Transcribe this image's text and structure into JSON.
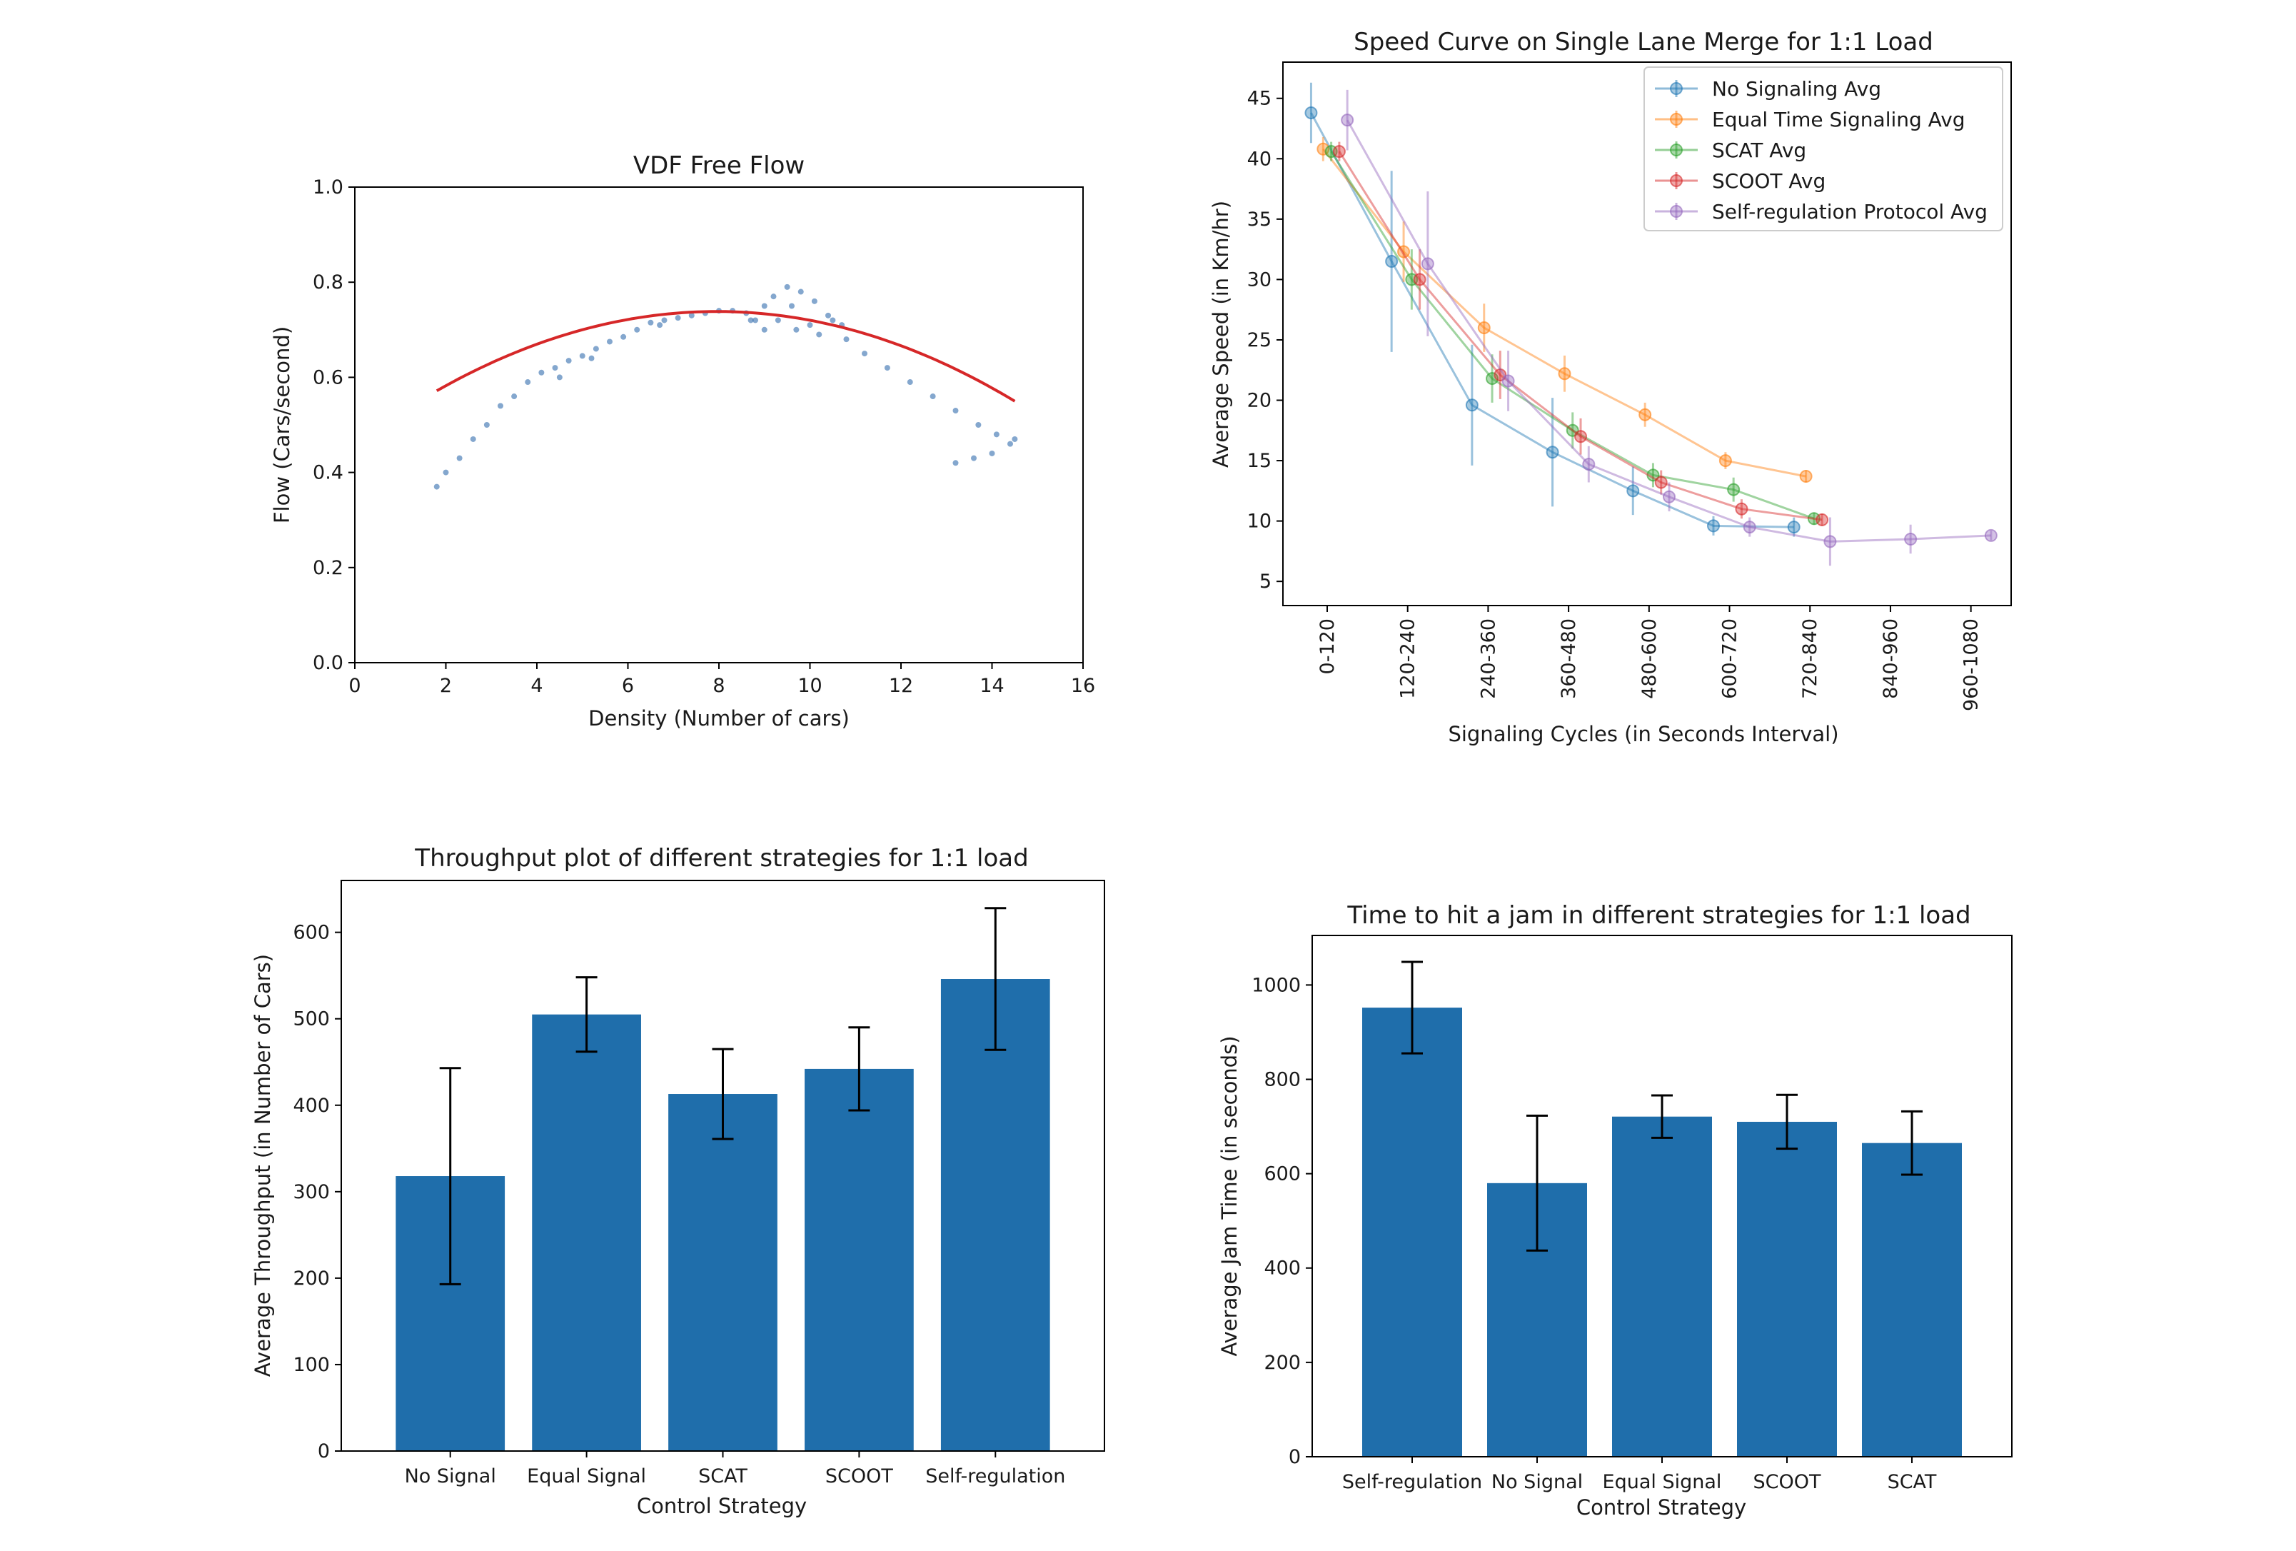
{
  "chart_data": [
    {
      "id": "vdf",
      "type": "scatter",
      "title": "VDF Free Flow",
      "xlabel": "Density (Number of cars)",
      "ylabel": "Flow (Cars/second)",
      "xlim": [
        0,
        16
      ],
      "ylim": [
        0.0,
        1.0
      ],
      "xticks": [
        0,
        2,
        4,
        6,
        8,
        10,
        12,
        14,
        16
      ],
      "yticks": [
        0.0,
        0.2,
        0.4,
        0.6,
        0.8,
        1.0
      ],
      "xtick_labels": [
        "0",
        "2",
        "4",
        "6",
        "8",
        "10",
        "12",
        "14",
        "16"
      ],
      "ytick_labels": [
        "0.0",
        "0.2",
        "0.4",
        "0.6",
        "0.8",
        "1.0"
      ],
      "fit": {
        "name": "fit",
        "color": "#d62728",
        "x_range": [
          1.8,
          14.5
        ],
        "a": -0.0044,
        "b": 0.07,
        "c": 0.46
      },
      "points_color": "#1f5fa6",
      "points": [
        [
          1.8,
          0.37
        ],
        [
          2.0,
          0.4
        ],
        [
          2.3,
          0.43
        ],
        [
          2.6,
          0.47
        ],
        [
          2.9,
          0.5
        ],
        [
          3.2,
          0.54
        ],
        [
          3.5,
          0.56
        ],
        [
          3.8,
          0.59
        ],
        [
          4.1,
          0.61
        ],
        [
          4.4,
          0.62
        ],
        [
          4.7,
          0.635
        ],
        [
          5.0,
          0.645
        ],
        [
          5.3,
          0.66
        ],
        [
          5.6,
          0.675
        ],
        [
          5.9,
          0.685
        ],
        [
          6.2,
          0.7
        ],
        [
          6.5,
          0.715
        ],
        [
          6.8,
          0.72
        ],
        [
          7.1,
          0.725
        ],
        [
          7.4,
          0.73
        ],
        [
          7.7,
          0.735
        ],
        [
          8.0,
          0.74
        ],
        [
          8.3,
          0.74
        ],
        [
          8.6,
          0.735
        ],
        [
          8.8,
          0.72
        ],
        [
          9.0,
          0.75
        ],
        [
          9.2,
          0.77
        ],
        [
          9.5,
          0.79
        ],
        [
          9.8,
          0.78
        ],
        [
          10.1,
          0.76
        ],
        [
          10.4,
          0.73
        ],
        [
          10.7,
          0.71
        ],
        [
          10.2,
          0.69
        ],
        [
          9.7,
          0.7
        ],
        [
          9.3,
          0.72
        ],
        [
          9.0,
          0.7
        ],
        [
          8.7,
          0.72
        ],
        [
          9.6,
          0.75
        ],
        [
          10.5,
          0.72
        ],
        [
          10.0,
          0.71
        ],
        [
          10.8,
          0.68
        ],
        [
          11.2,
          0.65
        ],
        [
          11.7,
          0.62
        ],
        [
          12.2,
          0.59
        ],
        [
          12.7,
          0.56
        ],
        [
          13.2,
          0.53
        ],
        [
          13.7,
          0.5
        ],
        [
          14.1,
          0.48
        ],
        [
          14.4,
          0.46
        ],
        [
          14.5,
          0.47
        ],
        [
          14.0,
          0.44
        ],
        [
          13.6,
          0.43
        ],
        [
          13.2,
          0.42
        ],
        [
          4.5,
          0.6
        ],
        [
          5.2,
          0.64
        ],
        [
          6.7,
          0.71
        ]
      ]
    },
    {
      "id": "speed",
      "type": "line",
      "title": "Speed Curve on Single Lane Merge for 1:1 Load",
      "xlabel": "Signaling Cycles (in Seconds Interval)",
      "ylabel": "Average Speed (in Km/hr)",
      "categories": [
        "0-120",
        "120-240",
        "240-360",
        "360-480",
        "480-600",
        "600-720",
        "720-840",
        "840-960",
        "960-1080"
      ],
      "xlim": [
        -0.55,
        8.5
      ],
      "ylim": [
        3,
        48
      ],
      "yticks": [
        5,
        10,
        15,
        20,
        25,
        30,
        35,
        40,
        45
      ],
      "ytick_labels": [
        "5",
        "10",
        "15",
        "20",
        "25",
        "30",
        "35",
        "40",
        "45"
      ],
      "series": [
        {
          "name": "No Signaling Avg",
          "color": "#1f77b4",
          "x": [
            -0.2,
            0.8,
            1.8,
            2.8,
            3.8,
            4.8,
            5.8
          ],
          "values": [
            43.8,
            31.5,
            19.6,
            15.7,
            12.5,
            9.6,
            9.5
          ],
          "err": [
            2.5,
            7.5,
            5.0,
            4.5,
            2.0,
            0.8,
            0.8
          ]
        },
        {
          "name": "Equal Time Signaling Avg",
          "color": "#ff7f0e",
          "x": [
            -0.05,
            0.95,
            1.95,
            2.95,
            3.95,
            4.95,
            5.95
          ],
          "values": [
            40.8,
            32.3,
            26.0,
            22.2,
            18.8,
            15.0,
            13.7
          ],
          "err": [
            1.0,
            2.5,
            2.0,
            1.5,
            1.0,
            0.7,
            0.5
          ]
        },
        {
          "name": "SCAT Avg",
          "color": "#2ca02c",
          "x": [
            0.05,
            1.05,
            2.05,
            3.05,
            4.05,
            5.05,
            6.05
          ],
          "values": [
            40.6,
            30.0,
            21.8,
            17.5,
            13.8,
            12.6,
            10.2
          ],
          "err": [
            0.8,
            2.5,
            2.0,
            1.5,
            1.0,
            1.0,
            0.5
          ]
        },
        {
          "name": "SCOOT Avg",
          "color": "#d62728",
          "x": [
            0.15,
            1.15,
            2.15,
            3.15,
            4.15,
            5.15,
            6.15
          ],
          "values": [
            40.6,
            30.0,
            22.1,
            17.0,
            13.2,
            11.0,
            10.1
          ],
          "err": [
            0.8,
            2.5,
            2.0,
            1.5,
            1.0,
            0.8,
            0.5
          ]
        },
        {
          "name": "Self-regulation Protocol Avg",
          "color": "#9467bd",
          "x": [
            0.25,
            1.25,
            2.25,
            3.25,
            4.25,
            5.25,
            6.25,
            7.25,
            8.25
          ],
          "values": [
            43.2,
            31.3,
            21.6,
            14.7,
            12.0,
            9.5,
            8.3,
            8.5,
            8.8
          ],
          "err": [
            2.5,
            6.0,
            2.5,
            1.5,
            1.2,
            0.8,
            2.0,
            1.2,
            0.4
          ]
        }
      ]
    },
    {
      "id": "throughput",
      "type": "bar",
      "title": "Throughput plot of different strategies for 1:1 load",
      "xlabel": "Control Strategy",
      "ylabel": "Average Throughput (in Number of Cars)",
      "categories": [
        "No Signal",
        "Equal Signal",
        "SCAT",
        "SCOOT",
        "Self-regulation"
      ],
      "values": [
        318,
        505,
        413,
        442,
        546
      ],
      "err": [
        125,
        43,
        52,
        48,
        82
      ],
      "color": "#1f6eab",
      "ylim": [
        0,
        660
      ],
      "yticks": [
        0,
        100,
        200,
        300,
        400,
        500,
        600
      ],
      "ytick_labels": [
        "0",
        "100",
        "200",
        "300",
        "400",
        "500",
        "600"
      ]
    },
    {
      "id": "jam",
      "type": "bar",
      "title": "Time to hit a jam in different strategies for 1:1 load",
      "xlabel": "Control Strategy",
      "ylabel": "Average Jam Time (in seconds)",
      "categories": [
        "Self-regulation",
        "No Signal",
        "Equal Signal",
        "SCOOT",
        "SCAT"
      ],
      "values": [
        952,
        580,
        721,
        710,
        665
      ],
      "err": [
        97,
        143,
        45,
        57,
        67
      ],
      "color": "#1f6eab",
      "ylim": [
        0,
        1105
      ],
      "yticks": [
        0,
        200,
        400,
        600,
        800,
        1000
      ],
      "ytick_labels": [
        "0",
        "200",
        "400",
        "600",
        "800",
        "1000"
      ]
    }
  ]
}
